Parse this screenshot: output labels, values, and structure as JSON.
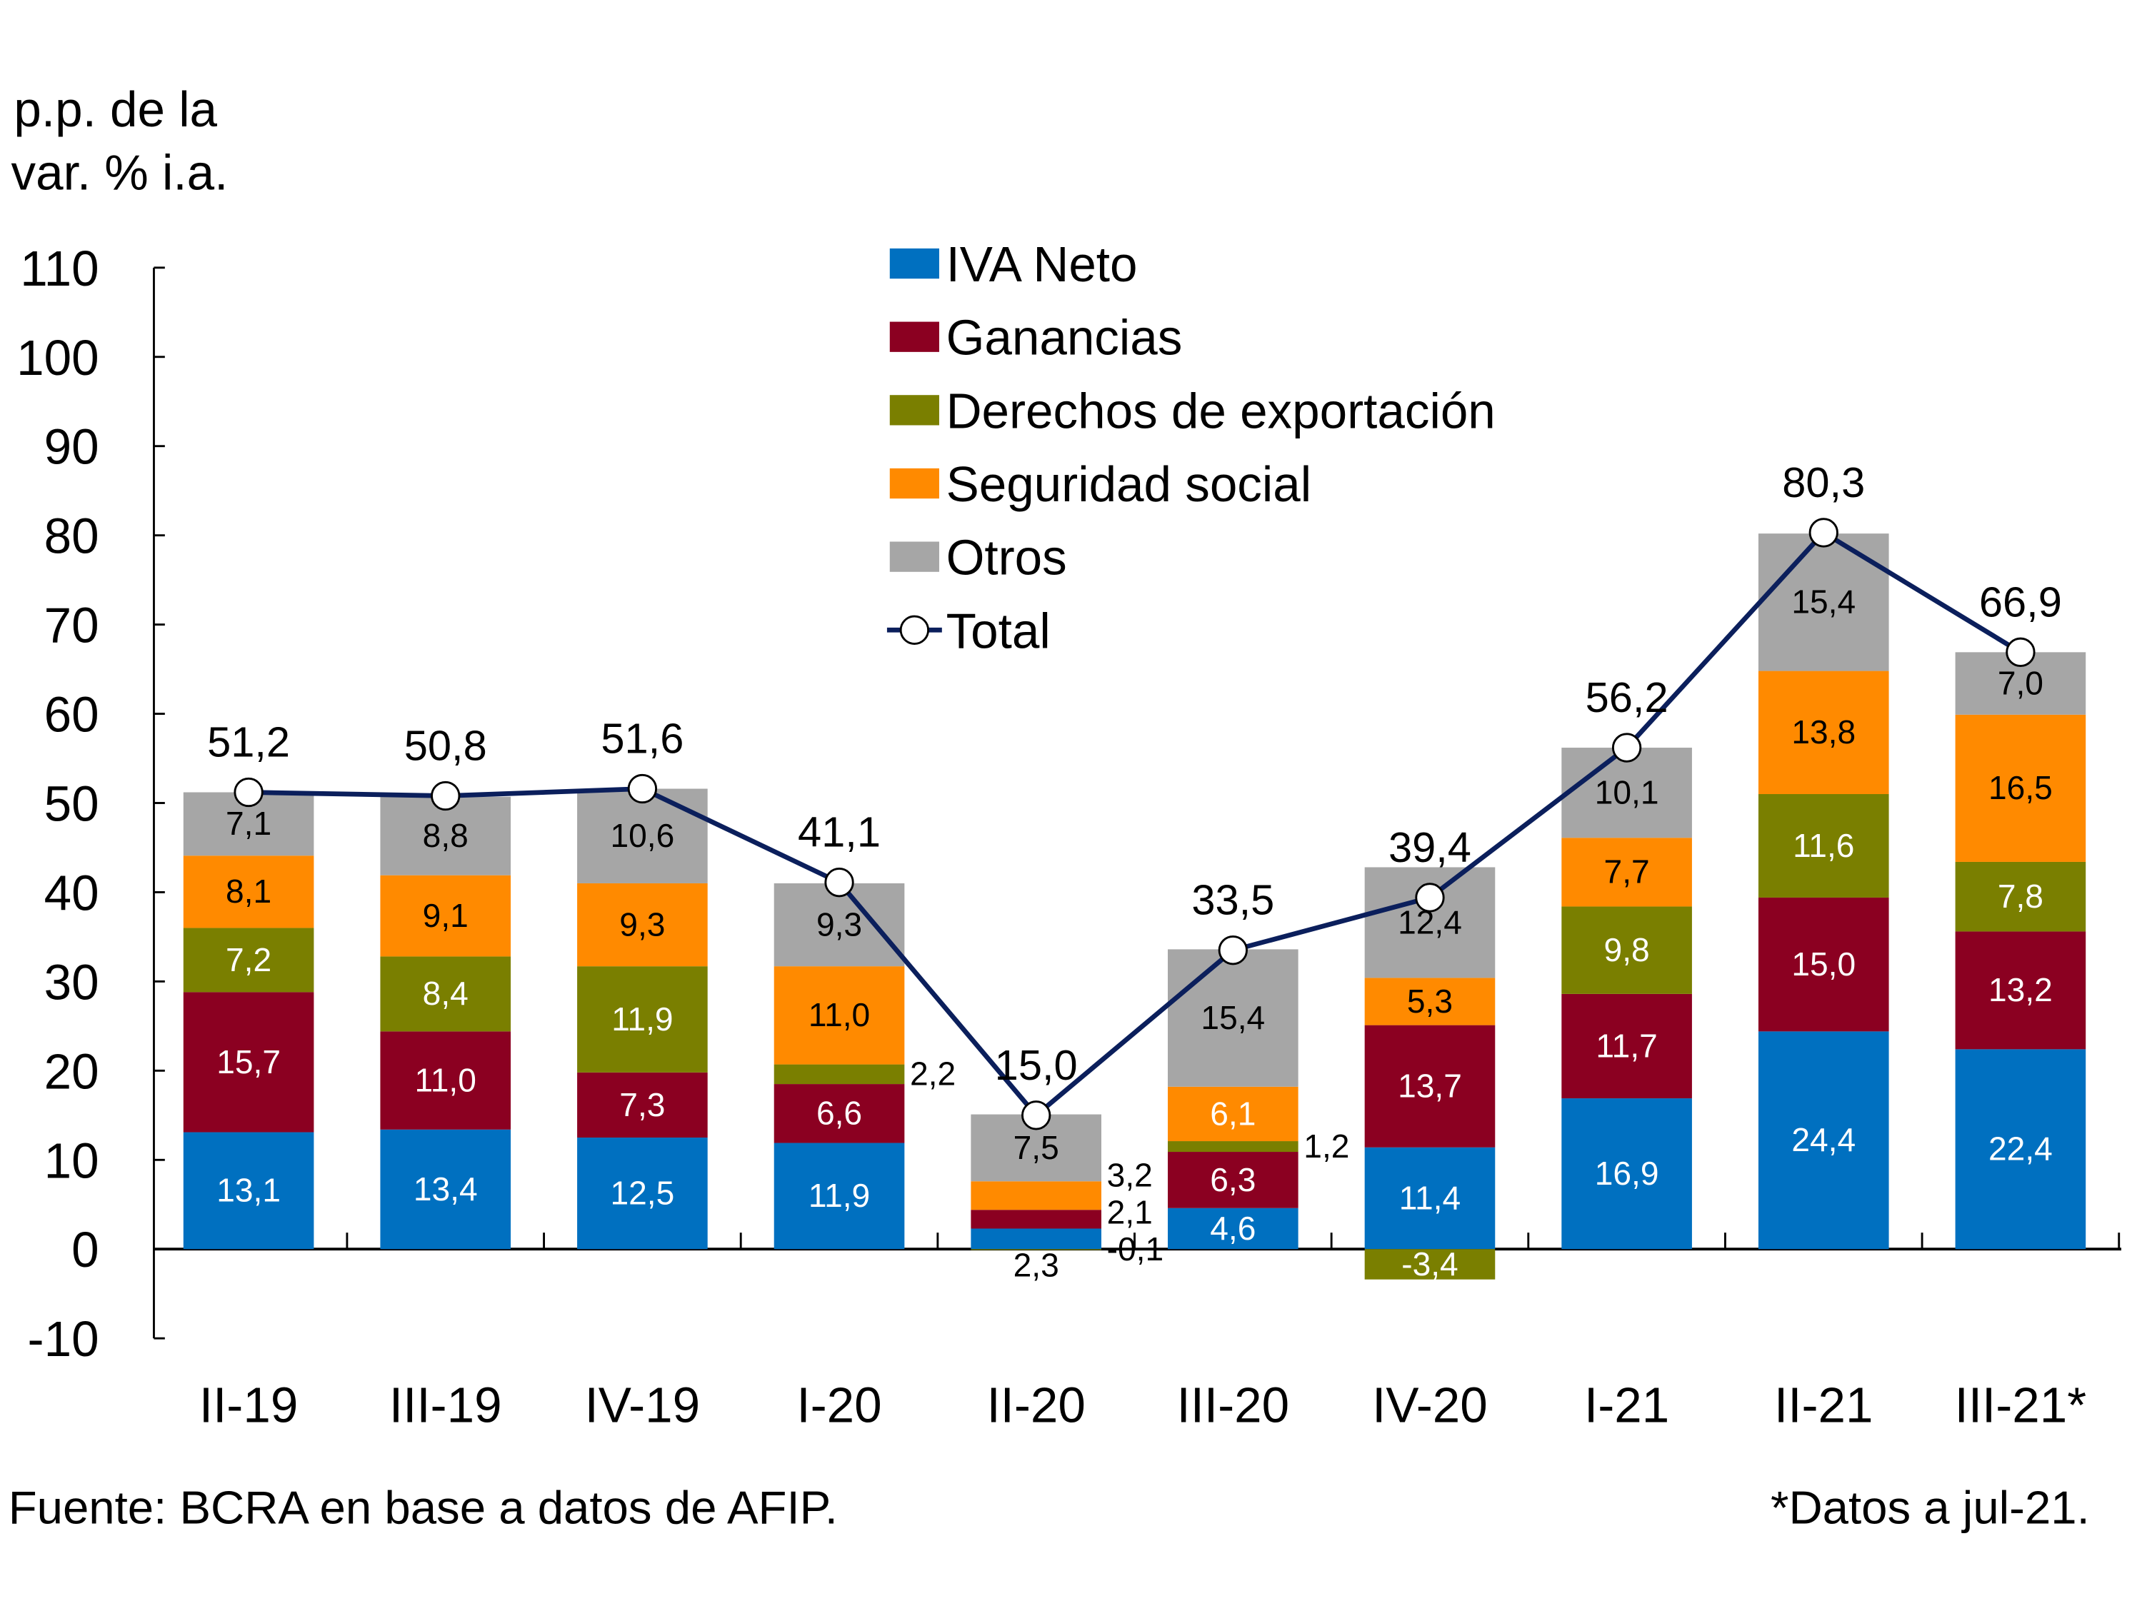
{
  "chart_data": {
    "type": "bar",
    "stacked": true,
    "ylabel": [
      "p.p. de la",
      "var. % i.a."
    ],
    "ylim": [
      -10,
      110
    ],
    "yticks": [
      -10,
      0,
      10,
      20,
      30,
      40,
      50,
      60,
      70,
      80,
      90,
      100,
      110
    ],
    "categories": [
      "II-19",
      "III-19",
      "IV-19",
      "I-20",
      "II-20",
      "III-20",
      "IV-20",
      "I-21",
      "II-21",
      "III-21*"
    ],
    "series": [
      {
        "name": "IVA Neto",
        "color": "#0070C0",
        "values": [
          13.1,
          13.4,
          12.5,
          11.9,
          2.3,
          4.6,
          11.4,
          16.9,
          24.4,
          22.4
        ]
      },
      {
        "name": "Ganancias",
        "color": "#8B0021",
        "values": [
          15.7,
          11.0,
          7.3,
          6.6,
          2.1,
          6.3,
          13.7,
          11.7,
          15.0,
          13.2
        ]
      },
      {
        "name": "Derechos de exportación",
        "color": "#7A7F00",
        "values": [
          7.2,
          8.4,
          11.9,
          2.2,
          -0.1,
          1.2,
          -3.4,
          9.8,
          11.6,
          7.8
        ]
      },
      {
        "name": "Seguridad social",
        "color": "#FF8A00",
        "values": [
          8.1,
          9.1,
          9.3,
          11.0,
          3.2,
          6.1,
          5.3,
          7.7,
          13.8,
          16.5
        ]
      },
      {
        "name": "Otros",
        "color": "#A6A6A6",
        "values": [
          7.1,
          8.8,
          10.6,
          9.3,
          7.5,
          15.4,
          12.4,
          10.1,
          15.4,
          7.0
        ]
      }
    ],
    "line": {
      "name": "Total",
      "color": "#0B1F5C",
      "values": [
        51.2,
        50.8,
        51.6,
        41.1,
        15.0,
        33.5,
        39.4,
        56.2,
        80.3,
        66.9
      ]
    },
    "legend_position": "top-center",
    "grid": false,
    "source": "Fuente: BCRA en base a datos de AFIP.",
    "footnote": "*Datos a jul-21."
  }
}
